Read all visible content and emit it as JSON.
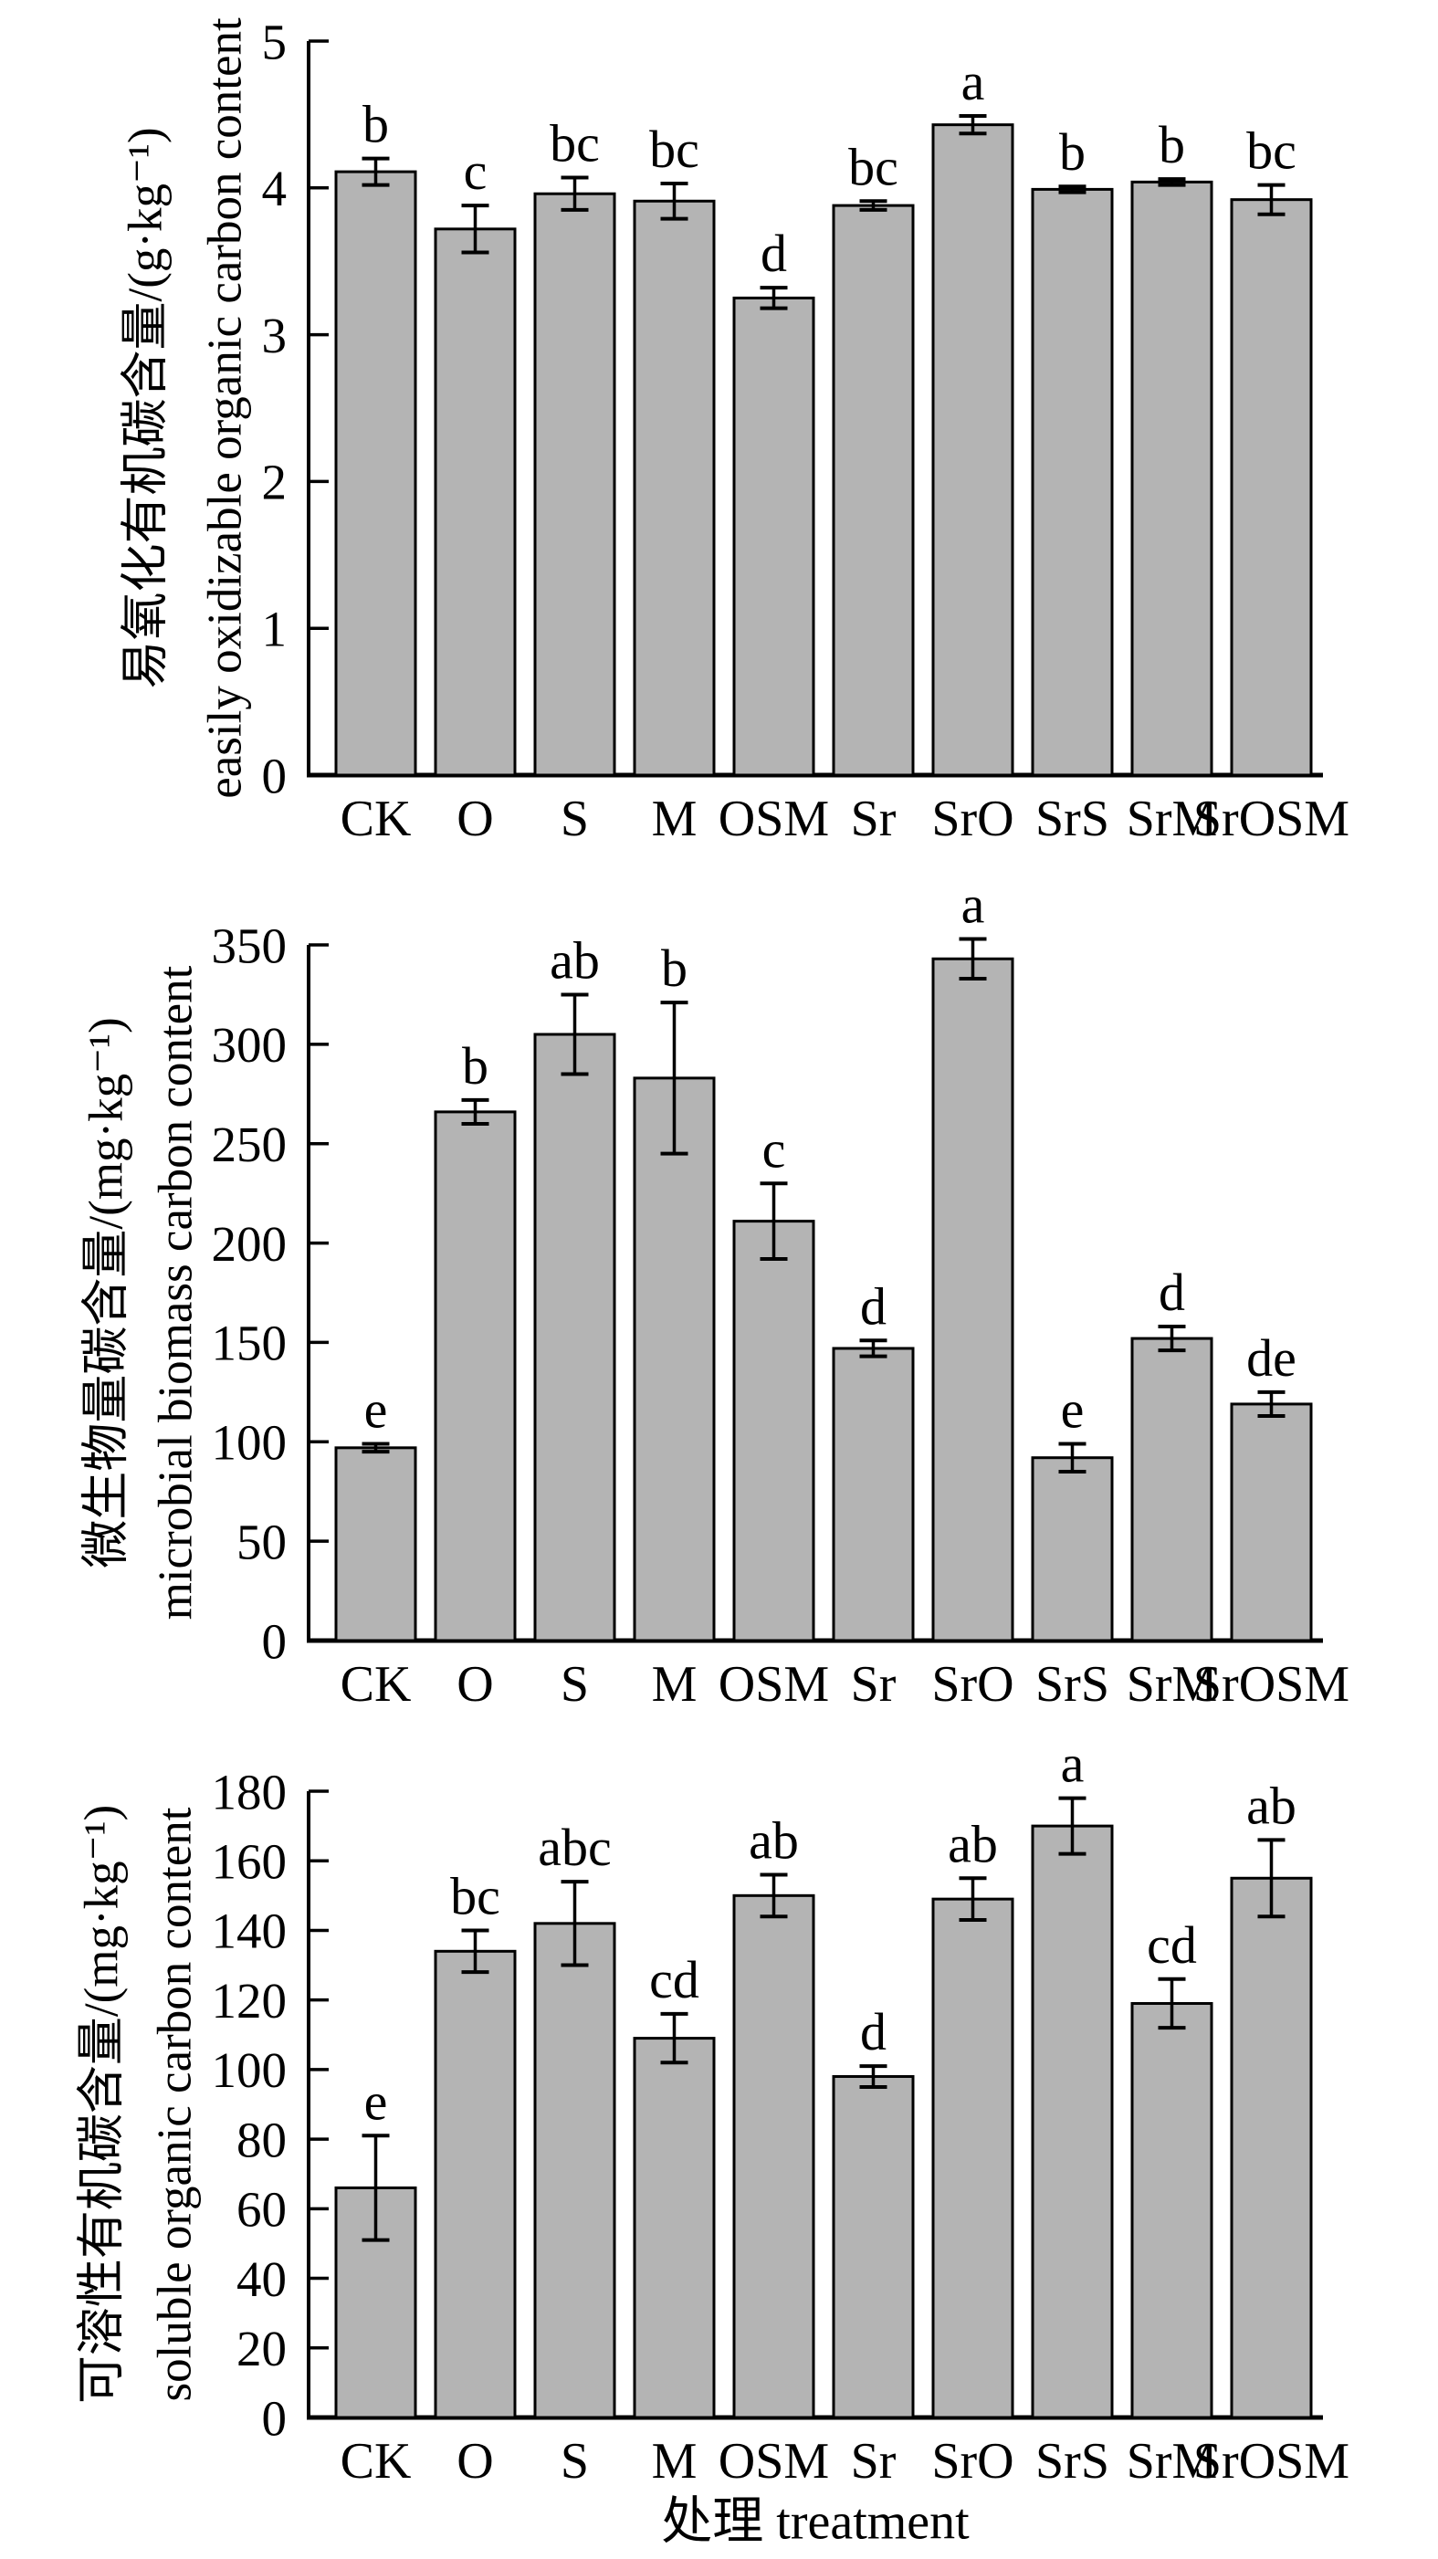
{
  "figure": {
    "background": "#ffffff",
    "bar_fill": "#b4b4b4",
    "bar_stroke": "#000000",
    "axis_color": "#000000",
    "xlabel": "处理 treatment",
    "categories": [
      "CK",
      "O",
      "S",
      "M",
      "OSM",
      "Sr",
      "SrO",
      "SrS",
      "SrM",
      "SrOSM"
    ]
  },
  "chart_data": [
    {
      "type": "bar",
      "title": "",
      "ylabel_zh": "易氧化有机碳含量/(g·kg⁻¹)",
      "ylabel_en": "easily oxidizable organic carbon content",
      "xlabel": "处理 treatment",
      "categories": [
        "CK",
        "O",
        "S",
        "M",
        "OSM",
        "Sr",
        "SrO",
        "SrS",
        "SrM",
        "SrOSM"
      ],
      "values": [
        4.11,
        3.72,
        3.96,
        3.91,
        3.25,
        3.88,
        4.43,
        3.99,
        4.04,
        3.92
      ],
      "errors": [
        0.09,
        0.16,
        0.11,
        0.12,
        0.07,
        0.03,
        0.06,
        0.02,
        0.02,
        0.1
      ],
      "sig_letters": [
        "b",
        "c",
        "bc",
        "bc",
        "d",
        "bc",
        "a",
        "b",
        "b",
        "bc"
      ],
      "ylim": [
        0,
        5
      ],
      "ytick_step": 1,
      "grid": false,
      "legend": "none"
    },
    {
      "type": "bar",
      "title": "",
      "ylabel_zh": "微生物量碳含量/(mg·kg⁻¹)",
      "ylabel_en": "microbial biomass carbon content",
      "xlabel": "处理 treatment",
      "categories": [
        "CK",
        "O",
        "S",
        "M",
        "OSM",
        "Sr",
        "SrO",
        "SrS",
        "SrM",
        "SrOSM"
      ],
      "values": [
        97,
        266,
        305,
        283,
        211,
        147,
        343,
        92,
        152,
        119
      ],
      "errors": [
        2,
        6,
        20,
        38,
        19,
        4,
        10,
        7,
        6,
        6
      ],
      "sig_letters": [
        "e",
        "b",
        "ab",
        "b",
        "c",
        "d",
        "a",
        "e",
        "d",
        "de"
      ],
      "ylim": [
        0,
        350
      ],
      "ytick_step": 50,
      "grid": false,
      "legend": "none"
    },
    {
      "type": "bar",
      "title": "",
      "ylabel_zh": "可溶性有机碳含量/(mg·kg⁻¹)",
      "ylabel_en": "soluble organic carbon content",
      "xlabel": "处理 treatment",
      "categories": [
        "CK",
        "O",
        "S",
        "M",
        "OSM",
        "Sr",
        "SrO",
        "SrS",
        "SrM",
        "SrOSM"
      ],
      "values": [
        66,
        134,
        142,
        109,
        150,
        98,
        149,
        170,
        119,
        155
      ],
      "errors": [
        15,
        6,
        12,
        7,
        6,
        3,
        6,
        8,
        7,
        11
      ],
      "sig_letters": [
        "e",
        "bc",
        "abc",
        "cd",
        "ab",
        "d",
        "ab",
        "a",
        "cd",
        "ab"
      ],
      "ylim": [
        0,
        180
      ],
      "ytick_step": 20,
      "grid": false,
      "legend": "none"
    }
  ]
}
